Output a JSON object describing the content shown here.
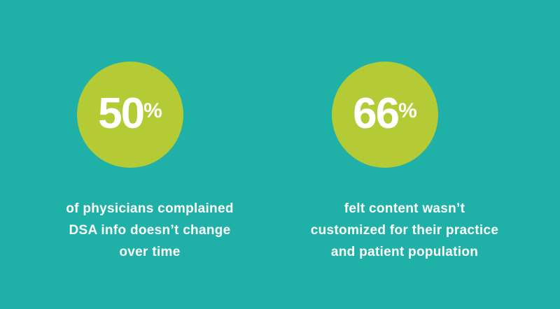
{
  "stats": [
    {
      "number": "50",
      "unit": "%",
      "caption": [
        "of physicians complained",
        "DSA info doesn’t change",
        "over time"
      ]
    },
    {
      "number": "66",
      "unit": "%",
      "caption": [
        "felt content wasn’t",
        "customized for their practice",
        "and patient population"
      ]
    }
  ]
}
